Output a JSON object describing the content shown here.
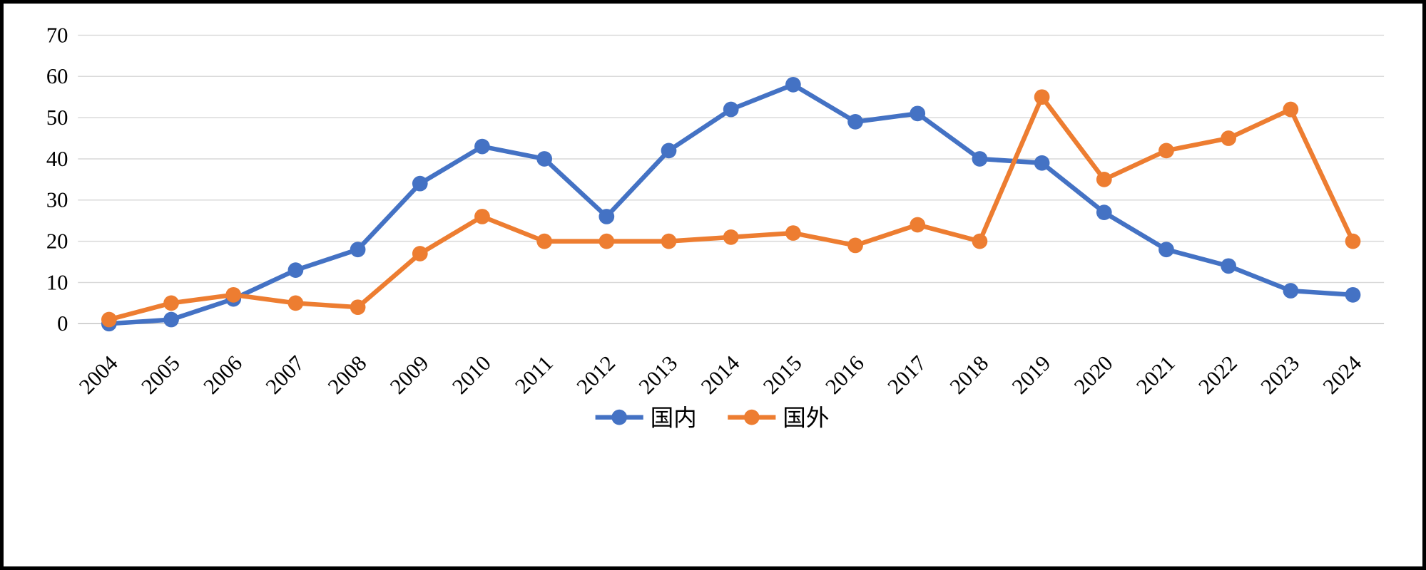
{
  "chart": {
    "background_color": "#ffffff",
    "border_color": "#000000",
    "grid_color": "#d9d9d9",
    "axis_line_color": "#bfbfbf"
  },
  "chart_data": {
    "type": "line",
    "title": "",
    "xlabel": "",
    "ylabel": "",
    "ylim": [
      0,
      70
    ],
    "y_ticks": [
      0,
      10,
      20,
      30,
      40,
      50,
      60,
      70
    ],
    "grid": true,
    "legend_position": "bottom",
    "categories": [
      "2004",
      "2005",
      "2006",
      "2007",
      "2008",
      "2009",
      "2010",
      "2011",
      "2012",
      "2013",
      "2014",
      "2015",
      "2016",
      "2017",
      "2018",
      "2019",
      "2020",
      "2021",
      "2022",
      "2023",
      "2024"
    ],
    "series": [
      {
        "name": "国内",
        "color": "#4472C4",
        "values": [
          0,
          1,
          6,
          13,
          18,
          34,
          43,
          40,
          26,
          42,
          52,
          58,
          49,
          51,
          40,
          39,
          27,
          18,
          14,
          8,
          7
        ]
      },
      {
        "name": "国外",
        "color": "#ED7D31",
        "values": [
          1,
          5,
          7,
          5,
          4,
          17,
          26,
          20,
          20,
          20,
          21,
          22,
          19,
          24,
          20,
          55,
          35,
          42,
          45,
          52,
          20
        ]
      }
    ]
  }
}
